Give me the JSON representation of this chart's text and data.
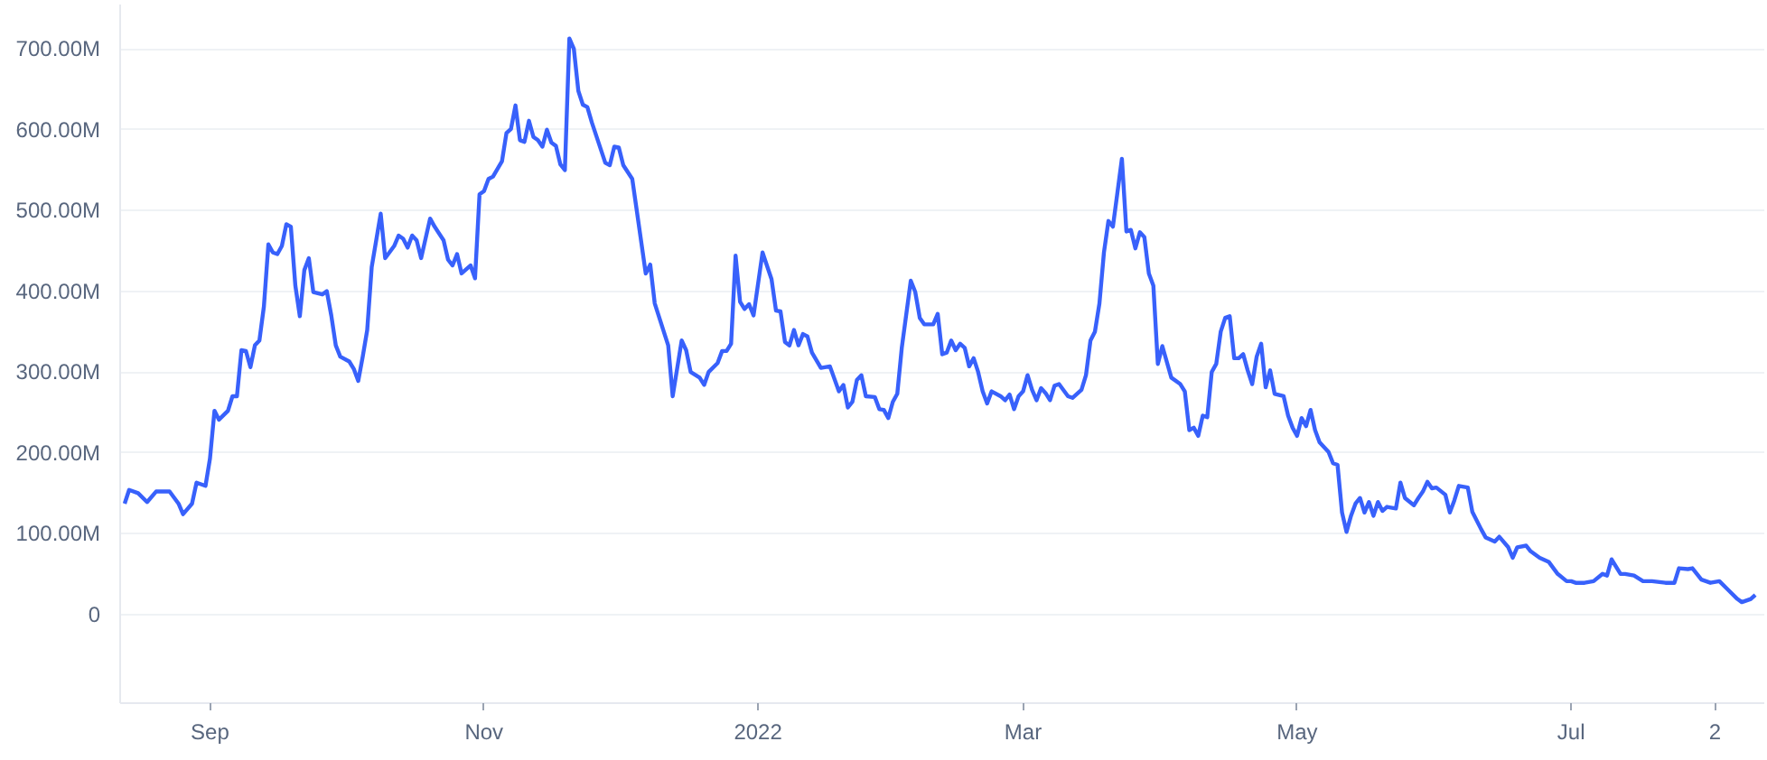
{
  "chart_data": {
    "type": "line",
    "x": [
      "2021-08-13",
      "2021-08-14",
      "2021-08-16",
      "2021-08-18",
      "2021-08-20",
      "2021-08-23",
      "2021-08-25",
      "2021-08-26",
      "2021-08-28",
      "2021-08-29",
      "2021-08-31",
      "2021-09-01",
      "2021-09-02",
      "2021-09-03",
      "2021-09-05",
      "2021-09-06",
      "2021-09-07",
      "2021-09-08",
      "2021-09-09",
      "2021-09-10",
      "2021-09-11",
      "2021-09-12",
      "2021-09-13",
      "2021-09-14",
      "2021-09-15",
      "2021-09-16",
      "2021-09-17",
      "2021-09-18",
      "2021-09-19",
      "2021-09-20",
      "2021-09-21",
      "2021-09-22",
      "2021-09-23",
      "2021-09-24",
      "2021-09-26",
      "2021-09-27",
      "2021-09-28",
      "2021-09-29",
      "2021-09-30",
      "2021-10-02",
      "2021-10-03",
      "2021-10-04",
      "2021-10-05",
      "2021-10-06",
      "2021-10-07",
      "2021-10-09",
      "2021-10-10",
      "2021-10-12",
      "2021-10-13",
      "2021-10-14",
      "2021-10-15",
      "2021-10-16",
      "2021-10-17",
      "2021-10-18",
      "2021-10-20",
      "2021-10-21",
      "2021-10-23",
      "2021-10-24",
      "2021-10-25",
      "2021-10-26",
      "2021-10-27",
      "2021-10-29",
      "2021-10-30",
      "2021-10-31",
      "2021-11-01",
      "2021-11-02",
      "2021-11-03",
      "2021-11-05",
      "2021-11-06",
      "2021-11-07",
      "2021-11-08",
      "2021-11-09",
      "2021-11-10",
      "2021-11-11",
      "2021-11-12",
      "2021-11-13",
      "2021-11-14",
      "2021-11-15",
      "2021-11-16",
      "2021-11-17",
      "2021-11-18",
      "2021-11-19",
      "2021-11-20",
      "2021-11-21",
      "2021-11-22",
      "2021-11-23",
      "2021-11-24",
      "2021-11-25",
      "2021-11-28",
      "2021-11-29",
      "2021-11-30",
      "2021-12-01",
      "2021-12-02",
      "2021-12-04",
      "2021-12-05",
      "2021-12-07",
      "2021-12-08",
      "2021-12-09",
      "2021-12-12",
      "2021-12-13",
      "2021-12-15",
      "2021-12-16",
      "2021-12-17",
      "2021-12-19",
      "2021-12-20",
      "2021-12-21",
      "2021-12-23",
      "2021-12-24",
      "2021-12-25",
      "2021-12-26",
      "2021-12-27",
      "2021-12-28",
      "2021-12-29",
      "2021-12-30",
      "2021-12-31",
      "2022-01-02",
      "2022-01-04",
      "2022-01-05",
      "2022-01-06",
      "2022-01-07",
      "2022-01-08",
      "2022-01-09",
      "2022-01-10",
      "2022-01-11",
      "2022-01-12",
      "2022-01-13",
      "2022-01-15",
      "2022-01-17",
      "2022-01-19",
      "2022-01-20",
      "2022-01-21",
      "2022-01-22",
      "2022-01-23",
      "2022-01-24",
      "2022-01-25",
      "2022-01-27",
      "2022-01-28",
      "2022-01-29",
      "2022-01-30",
      "2022-01-31",
      "2022-02-01",
      "2022-02-02",
      "2022-02-04",
      "2022-02-05",
      "2022-02-06",
      "2022-02-07",
      "2022-02-09",
      "2022-02-10",
      "2022-02-11",
      "2022-02-12",
      "2022-02-13",
      "2022-02-14",
      "2022-02-15",
      "2022-02-16",
      "2022-02-17",
      "2022-02-18",
      "2022-02-19",
      "2022-02-20",
      "2022-02-21",
      "2022-02-22",
      "2022-02-24",
      "2022-02-25",
      "2022-02-26",
      "2022-02-27",
      "2022-02-28",
      "2022-03-01",
      "2022-03-02",
      "2022-03-03",
      "2022-03-04",
      "2022-03-05",
      "2022-03-06",
      "2022-03-07",
      "2022-03-08",
      "2022-03-09",
      "2022-03-11",
      "2022-03-12",
      "2022-03-13",
      "2022-03-14",
      "2022-03-15",
      "2022-03-16",
      "2022-03-17",
      "2022-03-18",
      "2022-03-19",
      "2022-03-20",
      "2022-03-21",
      "2022-03-22",
      "2022-03-23",
      "2022-03-24",
      "2022-03-25",
      "2022-03-26",
      "2022-03-27",
      "2022-03-28",
      "2022-03-29",
      "2022-03-30",
      "2022-03-31",
      "2022-04-01",
      "2022-04-03",
      "2022-04-05",
      "2022-04-06",
      "2022-04-07",
      "2022-04-08",
      "2022-04-09",
      "2022-04-10",
      "2022-04-11",
      "2022-04-12",
      "2022-04-13",
      "2022-04-14",
      "2022-04-15",
      "2022-04-16",
      "2022-04-17",
      "2022-04-18",
      "2022-04-19",
      "2022-04-20",
      "2022-04-21",
      "2022-04-22",
      "2022-04-23",
      "2022-04-24",
      "2022-04-25",
      "2022-04-26",
      "2022-04-28",
      "2022-04-29",
      "2022-04-30",
      "2022-05-01",
      "2022-05-02",
      "2022-05-03",
      "2022-05-04",
      "2022-05-05",
      "2022-05-06",
      "2022-05-08",
      "2022-05-09",
      "2022-05-10",
      "2022-05-11",
      "2022-05-12",
      "2022-05-13",
      "2022-05-14",
      "2022-05-15",
      "2022-05-16",
      "2022-05-17",
      "2022-05-18",
      "2022-05-19",
      "2022-05-20",
      "2022-05-21",
      "2022-05-23",
      "2022-05-24",
      "2022-05-25",
      "2022-05-27",
      "2022-05-28",
      "2022-05-29",
      "2022-05-30",
      "2022-05-31",
      "2022-06-01",
      "2022-06-03",
      "2022-06-04",
      "2022-06-05",
      "2022-06-06",
      "2022-06-08",
      "2022-06-09",
      "2022-06-11",
      "2022-06-12",
      "2022-06-14",
      "2022-06-15",
      "2022-06-17",
      "2022-06-18",
      "2022-06-19",
      "2022-06-21",
      "2022-06-22",
      "2022-06-24",
      "2022-06-26",
      "2022-06-28",
      "2022-06-30",
      "2022-07-01",
      "2022-07-02",
      "2022-07-04",
      "2022-07-06",
      "2022-07-08",
      "2022-07-09",
      "2022-07-10",
      "2022-07-12",
      "2022-07-13",
      "2022-07-15",
      "2022-07-17",
      "2022-07-19",
      "2022-07-22",
      "2022-07-24",
      "2022-07-25",
      "2022-07-27",
      "2022-07-28",
      "2022-07-30",
      "2022-08-01",
      "2022-08-03",
      "2022-08-05",
      "2022-08-07",
      "2022-08-08",
      "2022-08-10",
      "2022-08-11"
    ],
    "series": [
      {
        "color": "#3861fb",
        "values": [
          137,
          154,
          150,
          139,
          152,
          152,
          137,
          124,
          137,
          163,
          159,
          193,
          252,
          241,
          252,
          270,
          270,
          327,
          326,
          306,
          333,
          339,
          381,
          458,
          448,
          446,
          456,
          483,
          480,
          407,
          369,
          426,
          441,
          399,
          396,
          400,
          370,
          333,
          319,
          313,
          304,
          289,
          319,
          352,
          430,
          496,
          441,
          456,
          469,
          465,
          454,
          469,
          463,
          441,
          490,
          480,
          463,
          439,
          432,
          446,
          422,
          432,
          416,
          520,
          524,
          539,
          542,
          561,
          596,
          601,
          630,
          587,
          585,
          611,
          591,
          587,
          579,
          600,
          584,
          580,
          557,
          550,
          713,
          700,
          648,
          631,
          628,
          609,
          559,
          556,
          579,
          578,
          556,
          539,
          500,
          422,
          433,
          385,
          333,
          270,
          339,
          327,
          300,
          293,
          284,
          300,
          311,
          326,
          326,
          335,
          444,
          387,
          378,
          384,
          370,
          448,
          415,
          376,
          375,
          337,
          333,
          352,
          333,
          347,
          344,
          324,
          305,
          307,
          276,
          284,
          256,
          263,
          290,
          296,
          270,
          269,
          254,
          253,
          243,
          263,
          273,
          330,
          413,
          399,
          367,
          359,
          359,
          372,
          322,
          324,
          339,
          327,
          335,
          330,
          307,
          317,
          300,
          276,
          261,
          276,
          270,
          265,
          272,
          254,
          270,
          276,
          296,
          278,
          265,
          280,
          274,
          265,
          283,
          285,
          270,
          268,
          273,
          278,
          296,
          339,
          350,
          385,
          448,
          487,
          480,
          522,
          564,
          474,
          476,
          453,
          473,
          467,
          422,
          407,
          310,
          332,
          293,
          285,
          276,
          228,
          231,
          221,
          246,
          244,
          300,
          310,
          350,
          367,
          369,
          317,
          317,
          322,
          302,
          285,
          319,
          335,
          281,
          302,
          273,
          270,
          246,
          231,
          221,
          243,
          233,
          253,
          228,
          213,
          201,
          187,
          185,
          126,
          102,
          122,
          137,
          144,
          126,
          139,
          122,
          139,
          128,
          133,
          131,
          163,
          144,
          135,
          144,
          152,
          164,
          156,
          157,
          148,
          126,
          141,
          159,
          157,
          127,
          105,
          95,
          90,
          96,
          83,
          70,
          83,
          85,
          78,
          70,
          65,
          50,
          41,
          41,
          39,
          39,
          41,
          50,
          48,
          68,
          50,
          50,
          48,
          41,
          41,
          39,
          39,
          57,
          56,
          57,
          43,
          39,
          41,
          30,
          19,
          15,
          19,
          24
        ]
      }
    ],
    "xlim": [
      "2021-08-12",
      "2022-08-13"
    ],
    "xticks": [
      {
        "value": "2021-09-01",
        "label": "Sep"
      },
      {
        "value": "2021-11-01",
        "label": "Nov"
      },
      {
        "value": "2022-01-01",
        "label": "2022"
      },
      {
        "value": "2022-03-01",
        "label": "Mar"
      },
      {
        "value": "2022-05-01",
        "label": "May"
      },
      {
        "value": "2022-07-01",
        "label": "Jul"
      },
      {
        "value": "2022-08-02",
        "label": "2"
      }
    ],
    "ylim": [
      -110,
      755
    ],
    "yticks": [
      0,
      {
        "value": 100,
        "label": "100.00M"
      },
      {
        "value": 200,
        "label": "200.00M"
      },
      {
        "value": 300,
        "label": "300.00M"
      },
      {
        "value": 400,
        "label": "400.00M"
      },
      {
        "value": 500,
        "label": "500.00M"
      },
      {
        "value": 600,
        "label": "600.00M"
      },
      {
        "value": 700,
        "label": "700.00M"
      }
    ],
    "grid": "y",
    "marker": "none",
    "line_style": "solid"
  }
}
